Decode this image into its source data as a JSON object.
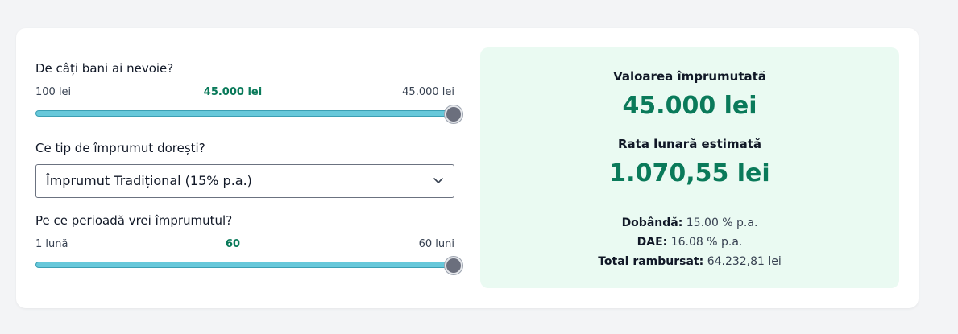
{
  "amount": {
    "question": "De câți bani ai nevoie?",
    "min_label": "100 lei",
    "current_label": "45.000 lei",
    "max_label": "45.000 lei",
    "min": 100,
    "max": 45000,
    "value": 45000
  },
  "loan_type": {
    "question": "Ce tip de împrumut dorești?",
    "selected": "Împrumut Tradițional (15% p.a.)"
  },
  "period": {
    "question": "Pe ce perioadă vrei împrumutul?",
    "min_label": "1 lună",
    "current_label": "60",
    "max_label": "60 luni",
    "min": 1,
    "max": 60,
    "value": 60
  },
  "summary": {
    "borrowed_label": "Valoarea împrumutată",
    "borrowed_value": "45.000 lei",
    "monthly_label": "Rata lunară estimată",
    "monthly_value": "1.070,55 lei",
    "interest_label": "Dobândă:",
    "interest_value": "15.00 % p.a.",
    "dae_label": "DAE:",
    "dae_value": "16.08 % p.a.",
    "total_label": "Total rambursat:",
    "total_value": "64.232,81 lei"
  },
  "colors": {
    "accent": "#0a7a5a",
    "track": "#67c8da",
    "panel_bg": "#eafaf2"
  }
}
